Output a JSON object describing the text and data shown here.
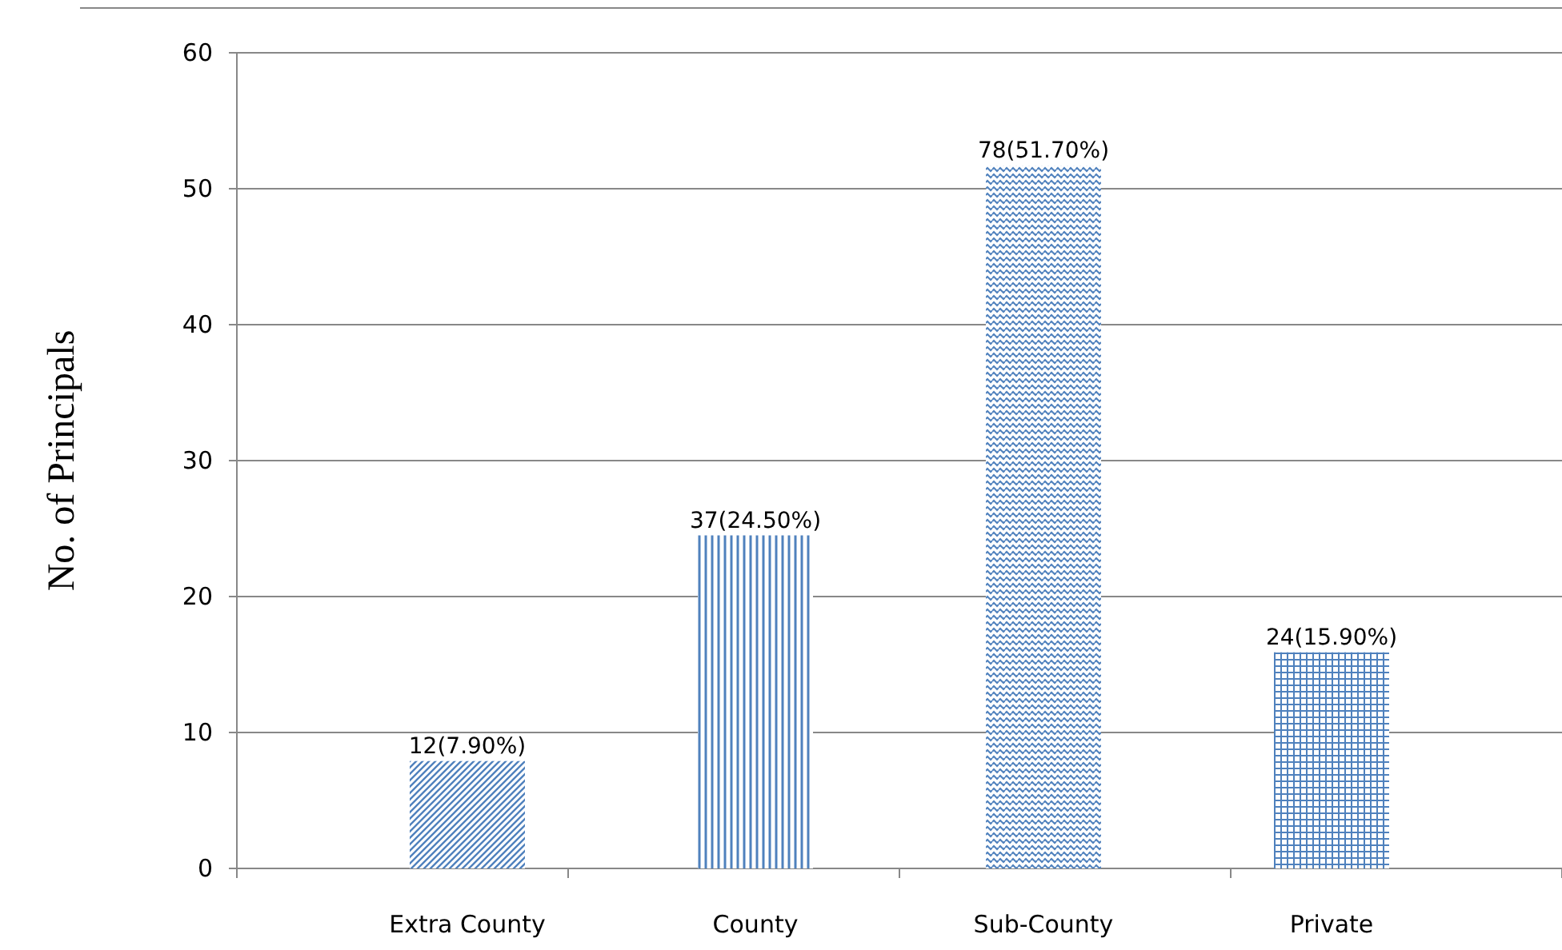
{
  "chart_data": {
    "type": "bar",
    "ylabel": "No. of Principals",
    "categories": [
      "Extra County",
      "County",
      "Sub-County",
      "Private"
    ],
    "values": [
      7.9,
      24.5,
      51.7,
      15.9
    ],
    "colors": [
      "#4f81bd",
      "#4f81bd",
      "#4f81bd",
      "#4f81bd"
    ],
    "value_labels": [
      "12(7.90%)",
      "37(24.50%)",
      "78(51.70%)",
      "24(15.90%)"
    ],
    "ylim": [
      0,
      60
    ],
    "yticks": [
      0,
      10,
      20,
      30,
      40,
      50,
      60
    ],
    "grid": "y"
  }
}
